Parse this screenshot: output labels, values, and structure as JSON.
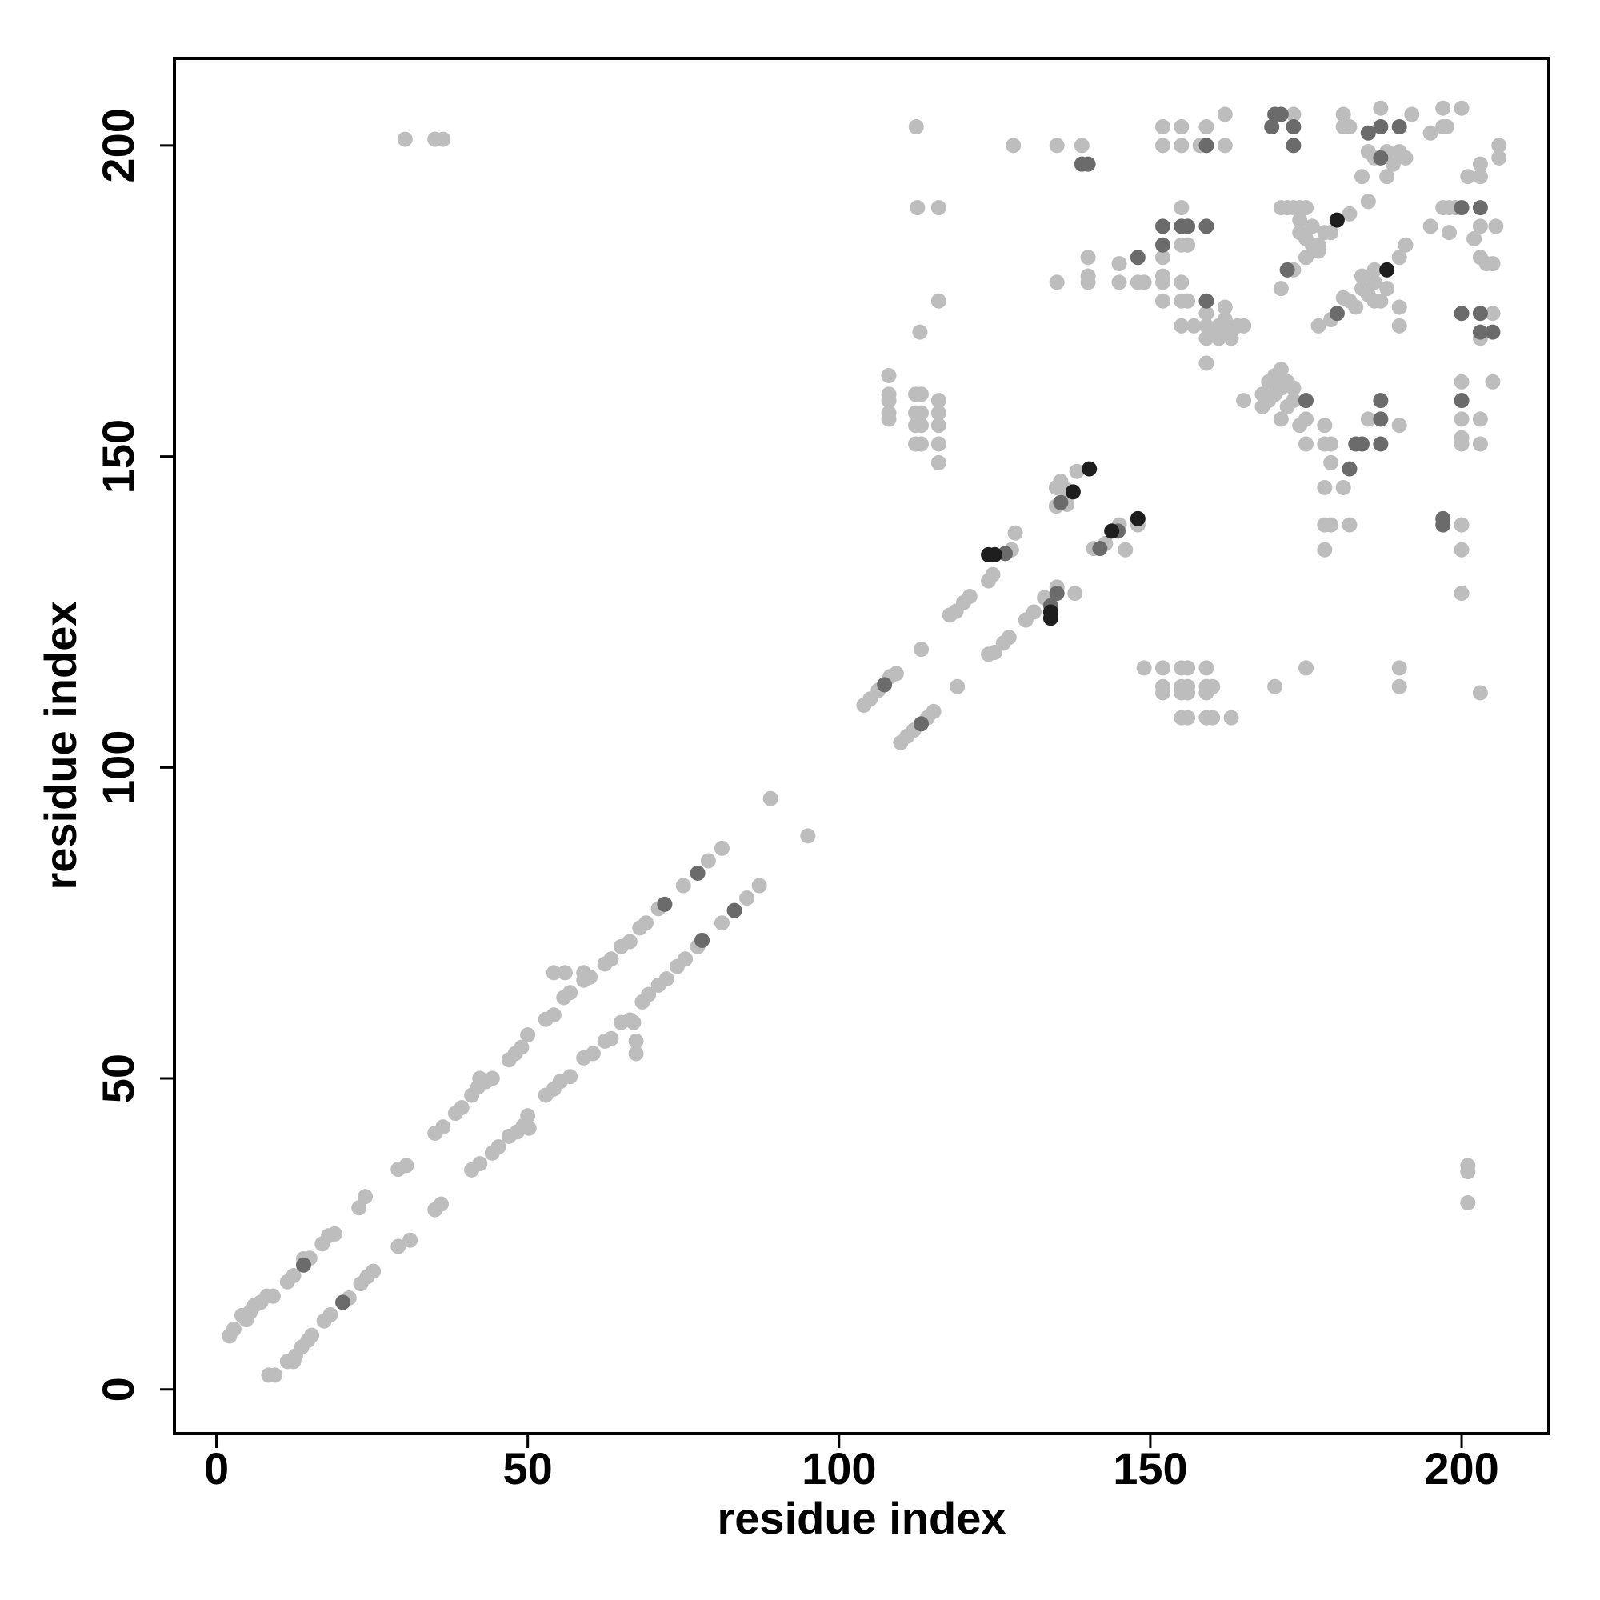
{
  "chart_data": {
    "type": "scatter",
    "xlabel": "residue index",
    "ylabel": "residue index",
    "xlim": [
      -6.75,
      214
    ],
    "ylim": [
      -7.1,
      214
    ],
    "xticks": [
      0,
      50,
      100,
      150,
      200
    ],
    "yticks": [
      0,
      50,
      100,
      150,
      200
    ],
    "grid": false,
    "series": [
      {
        "color": "#bdbdbd",
        "x": [
          2.1,
          2.8,
          4.1,
          4.8,
          5.4,
          6.1,
          7.1,
          8.1,
          9.1,
          11.4,
          12.4,
          14,
          15,
          17,
          18,
          19,
          22.9,
          23.9,
          29.2,
          30.5,
          35.1,
          36.4,
          38.4,
          39.4,
          41,
          42,
          42.3,
          43.3,
          44.3,
          47,
          48,
          49,
          50,
          52.9,
          54.2,
          54.2,
          56,
          55.8,
          56.8,
          59,
          59,
          60,
          62.4,
          63.4,
          65,
          66.4,
          68,
          69,
          71,
          72,
          75,
          79,
          81.2,
          89,
          95,
          8.4,
          9.4,
          11.4,
          12.4,
          12.7,
          13.7,
          14.7,
          15.3,
          17.3,
          18.3,
          21.3,
          23.2,
          24.2,
          25.2,
          29.2,
          31.1,
          35.1,
          36.1,
          41,
          42.3,
          44.3,
          45.3,
          47,
          48.3,
          49.3,
          50,
          50.2,
          52.9,
          54.2,
          55.2,
          56.8,
          59,
          60.5,
          62.4,
          63.4,
          65,
          66.4,
          67.4,
          67.4,
          67,
          68.4,
          69.4,
          71,
          72.3,
          74,
          75.3,
          77.3,
          81.2,
          85.2,
          87.2,
          104,
          105,
          106.3,
          108.2,
          109.2,
          117.8,
          118.8,
          120,
          121,
          124,
          124.7,
          127.7,
          128.3,
          134.9,
          135.6,
          136.6,
          138.2,
          134.9,
          136.6,
          109.9,
          110.9,
          112,
          114.2,
          115.2,
          113.2,
          119,
          124,
          125,
          126.4,
          127.3,
          130,
          131.3,
          133,
          135,
          137.9,
          140.9,
          142.8,
          145,
          146,
          148,
          112.4,
          30.3,
          35.1,
          36.4,
          128,
          135,
          139,
          152,
          155,
          159,
          162,
          152,
          155,
          158,
          162,
          173,
          181,
          181,
          182,
          187,
          192,
          197,
          200,
          197.6,
          185,
          186,
          188,
          189,
          190,
          191,
          188,
          184,
          206,
          206,
          203,
          201,
          203,
          112.6,
          116,
          116,
          113,
          108,
          108,
          108,
          108,
          108,
          112.3,
          113.2,
          112.3,
          113.2,
          112.3,
          113.2,
          112.3,
          113.2,
          116,
          116,
          116,
          116,
          116,
          140,
          140,
          140,
          135,
          145,
          145,
          148,
          149,
          152,
          152,
          152,
          152,
          155,
          155,
          156,
          155,
          155,
          156,
          159,
          155,
          157,
          159,
          161,
          162,
          162,
          159,
          161,
          163,
          164,
          165,
          159,
          160,
          162,
          152,
          155,
          156,
          159,
          152,
          152,
          155,
          156,
          159,
          160,
          155,
          156,
          159,
          155,
          156,
          159,
          160,
          163,
          149,
          170,
          175,
          190,
          190,
          203,
          200,
          200,
          200,
          201,
          201,
          201,
          178,
          178,
          179,
          182,
          178,
          181,
          178,
          179,
          185,
          190,
          178,
          179,
          173,
          175,
          171,
          174,
          175,
          168,
          169,
          170,
          171,
          172,
          169,
          170,
          171,
          168,
          173,
          172,
          165,
          171,
          173,
          175,
          177,
          179,
          182,
          185,
          171,
          172,
          173,
          174,
          175,
          174,
          175,
          176,
          177,
          178,
          176,
          174,
          177,
          179,
          182,
          184,
          186,
          190,
          191,
          187,
          190,
          190,
          181,
          183,
          185,
          186,
          184,
          186,
          188,
          195,
          197,
          198,
          199,
          203,
          198,
          202,
          203,
          204,
          205,
          205,
          203,
          205,
          200,
          200,
          203,
          200,
          203,
          200,
          205.5,
          195,
          197
        ],
        "values": [
          8.6,
          9.7,
          11.9,
          11.2,
          12.4,
          13.5,
          14,
          15,
          15,
          17.3,
          18.3,
          21,
          21.1,
          23.4,
          24.7,
          25,
          29.2,
          31,
          35.4,
          36,
          41.2,
          42.2,
          44.4,
          45.3,
          47.3,
          48.6,
          50,
          49.5,
          50,
          53,
          54,
          55,
          57,
          59.5,
          60.2,
          67,
          67,
          63,
          63.8,
          67,
          65.8,
          66.3,
          68.4,
          69.2,
          71.2,
          72,
          74.2,
          75,
          77.3,
          78,
          81,
          85,
          87,
          95,
          89,
          2.3,
          2.3,
          4.5,
          4.5,
          5.4,
          6.8,
          7.9,
          8.7,
          11,
          12,
          14.7,
          17,
          18.1,
          19,
          23,
          24,
          28.9,
          29.8,
          35.3,
          36.3,
          38,
          39,
          40.7,
          41.4,
          42.4,
          44,
          42,
          47.3,
          48.3,
          49.5,
          50.3,
          53.3,
          54,
          56,
          56.4,
          59,
          59.4,
          56,
          54,
          59,
          62.3,
          63.5,
          65,
          66,
          68,
          69.2,
          71.2,
          75,
          79,
          81,
          110,
          111,
          112.4,
          114.6,
          115.1,
          124.5,
          125.1,
          126.5,
          127.5,
          130,
          131,
          135,
          137.7,
          145,
          146,
          144.6,
          147.6,
          142,
          142.3,
          104,
          105,
          106,
          108,
          109,
          119,
          113,
          118.2,
          118.5,
          120,
          120.9,
          123.7,
          125,
          127.3,
          129,
          128,
          135.2,
          136,
          139,
          135,
          139,
          203,
          201,
          201,
          201,
          200,
          200,
          200,
          203,
          203,
          203,
          205,
          200,
          200,
          200,
          200,
          205,
          205,
          203,
          203,
          206,
          205,
          206,
          206,
          203,
          199,
          198,
          199,
          197,
          199,
          198,
          195,
          195,
          200,
          198,
          197,
          195,
          195,
          190,
          190,
          175,
          170,
          163,
          160,
          159,
          156,
          157,
          160,
          160,
          157,
          157,
          155,
          155,
          152,
          152,
          159,
          157,
          155,
          152,
          149,
          182,
          179,
          178,
          178,
          181,
          178,
          178,
          178,
          182,
          179,
          178,
          175,
          190,
          184,
          184,
          178,
          175,
          175,
          173,
          171,
          171,
          171,
          171,
          174,
          172,
          169,
          169,
          169,
          171,
          171,
          165,
          170,
          170,
          116,
          116,
          116,
          116,
          113,
          112,
          113,
          113,
          113,
          113,
          112,
          112,
          112,
          108,
          108,
          108,
          108,
          108,
          116,
          113,
          116,
          116,
          113,
          112,
          128,
          135,
          139,
          36,
          35,
          30,
          135,
          139,
          139,
          139,
          145,
          145,
          152,
          152,
          156,
          155,
          155,
          149,
          159,
          156,
          156,
          155,
          152,
          158,
          159,
          160,
          161,
          162,
          162,
          163,
          164,
          160,
          161,
          158,
          159,
          177,
          180,
          182,
          183,
          186,
          189,
          191,
          190,
          190,
          190,
          190,
          190,
          186,
          185,
          187,
          184,
          186,
          184,
          188,
          171,
          172,
          175,
          177,
          178,
          182,
          184,
          175,
          174,
          171,
          175.5,
          174,
          176,
          175,
          179,
          180,
          177,
          187,
          190,
          190,
          190,
          187,
          186,
          185,
          182,
          181,
          181,
          173,
          169,
          162,
          162,
          156,
          156,
          153,
          152,
          152,
          187,
          202,
          203
        ]
      },
      {
        "color": "#6b6b6b",
        "x": [
          14,
          20.3,
          77.3,
          72,
          78,
          83.2,
          107.3,
          113.2,
          126.7,
          135.6,
          141.9,
          144.8,
          134,
          135,
          139,
          140,
          159,
          170,
          171,
          169.5,
          173,
          173,
          185,
          187,
          190,
          187,
          148,
          152,
          152,
          155,
          156,
          159,
          159,
          197,
          197,
          182,
          183,
          184,
          187,
          187,
          187,
          175,
          172,
          180,
          200,
          203,
          200,
          203,
          203,
          205,
          200
        ],
        "values": [
          20,
          14,
          83,
          78,
          72.2,
          77,
          113.3,
          107,
          134.4,
          142.6,
          135.2,
          138,
          126,
          128,
          197,
          197,
          200,
          205,
          205,
          203,
          203,
          200,
          202,
          203,
          203,
          198,
          182,
          187,
          184,
          187,
          187,
          187,
          175,
          140,
          139,
          148,
          152,
          152,
          152,
          156,
          159,
          159,
          180,
          173,
          190,
          190,
          173,
          173,
          170,
          170,
          159
        ]
      },
      {
        "color": "#1e1e1e",
        "x": [
          124,
          125,
          134,
          134,
          137.6,
          140.2,
          143.8,
          148,
          180,
          188
        ],
        "values": [
          134.2,
          134.2,
          124,
          125,
          144.3,
          148,
          138,
          140,
          188,
          180
        ]
      }
    ]
  }
}
